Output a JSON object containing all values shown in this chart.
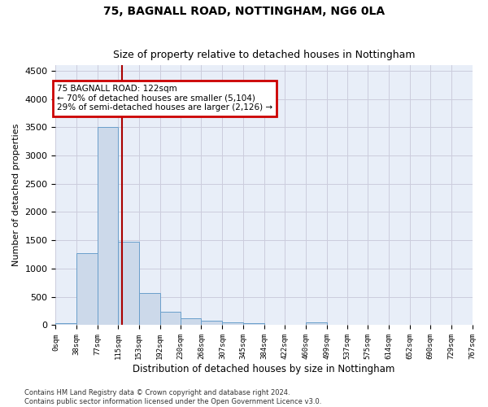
{
  "title": "75, BAGNALL ROAD, NOTTINGHAM, NG6 0LA",
  "subtitle": "Size of property relative to detached houses in Nottingham",
  "xlabel": "Distribution of detached houses by size in Nottingham",
  "ylabel": "Number of detached properties",
  "bar_color": "#ccd9ea",
  "bar_edge_color": "#6a9fcb",
  "grid_color": "#ccccdd",
  "background_color": "#e8eef8",
  "property_value": 122,
  "property_line_color": "#aa0000",
  "annotation_box_color": "#cc0000",
  "annotation_line1": "75 BAGNALL ROAD: 122sqm",
  "annotation_line2": "← 70% of detached houses are smaller (5,104)",
  "annotation_line3": "29% of semi-detached houses are larger (2,126) →",
  "bin_edges": [
    0,
    38,
    77,
    115,
    153,
    192,
    230,
    268,
    307,
    345,
    384,
    422,
    460,
    499,
    537,
    575,
    614,
    652,
    690,
    729,
    767
  ],
  "bar_heights": [
    40,
    1270,
    3500,
    1480,
    575,
    240,
    115,
    85,
    55,
    40,
    0,
    0,
    50,
    0,
    0,
    0,
    0,
    0,
    0,
    0
  ],
  "ylim": [
    0,
    4600
  ],
  "yticks": [
    0,
    500,
    1000,
    1500,
    2000,
    2500,
    3000,
    3500,
    4000,
    4500
  ],
  "footnote": "Contains HM Land Registry data © Crown copyright and database right 2024.\nContains public sector information licensed under the Open Government Licence v3.0.",
  "figsize": [
    6.0,
    5.0
  ],
  "dpi": 100
}
